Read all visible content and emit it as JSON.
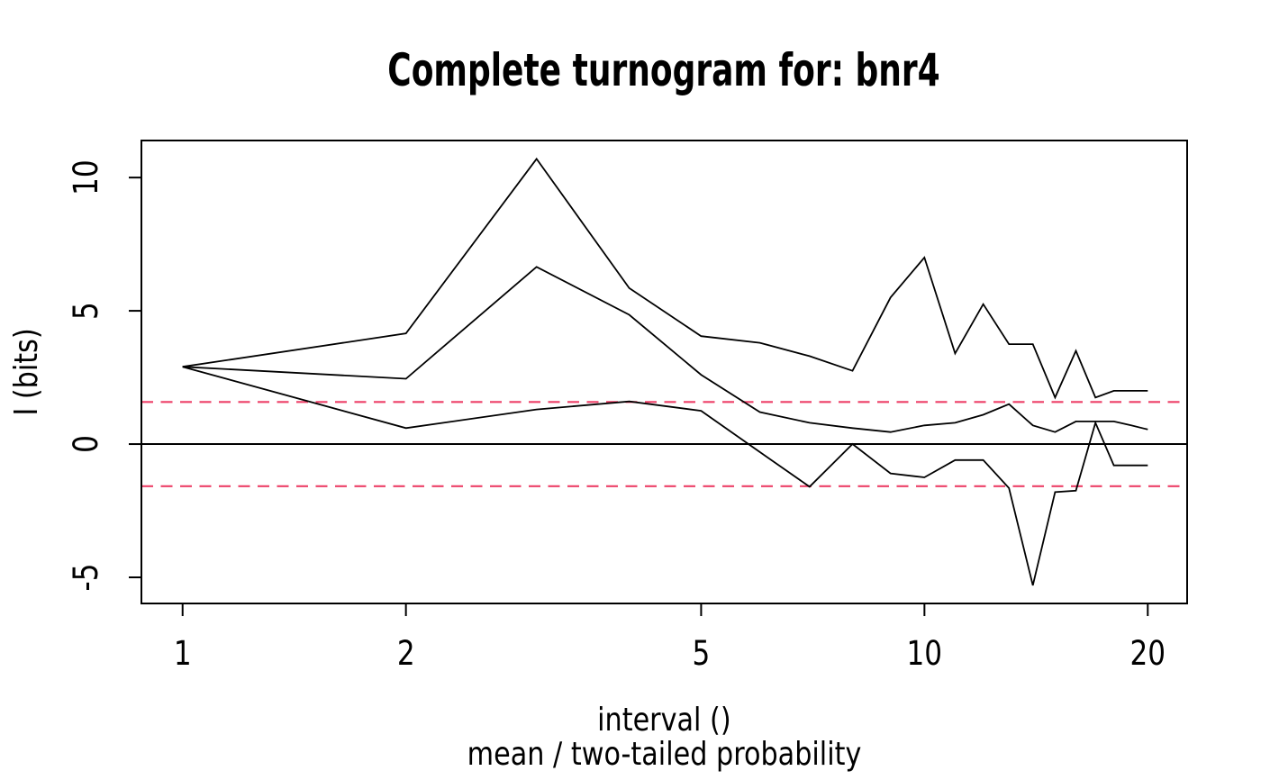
{
  "chart_data": {
    "type": "line",
    "title": "Complete turnogram for: bnr4",
    "xlabel": "interval ()",
    "sub_xlabel": "mean / two-tailed probability",
    "ylabel": "I (bits)",
    "x_scale": "log10",
    "grid": false,
    "legend": "none",
    "line_color": "#000000",
    "critical_color": "#ed4168",
    "x_ticks": [
      1,
      2,
      5,
      10,
      20
    ],
    "y_ticks": [
      -5,
      0,
      5,
      10
    ],
    "xlim": [
      0.88,
      22.6
    ],
    "ylim": [
      -5.98,
      11.39
    ],
    "x": [
      1,
      2,
      3,
      4,
      5,
      6,
      7,
      8,
      9,
      10,
      11,
      12,
      13,
      14,
      15,
      16,
      17,
      18,
      19,
      20
    ],
    "series": [
      {
        "name": "max",
        "color": "#000000",
        "values": [
          2.9,
          4.15,
          10.7,
          5.85,
          4.05,
          3.8,
          3.3,
          2.75,
          5.5,
          7.0,
          3.4,
          5.25,
          3.75,
          3.75,
          1.75,
          3.5,
          1.75,
          2.0,
          2.0,
          2.0
        ]
      },
      {
        "name": "mean",
        "color": "#000000",
        "values": [
          2.9,
          2.45,
          6.65,
          4.85,
          2.6,
          1.2,
          0.8,
          0.6,
          0.45,
          0.7,
          0.8,
          1.1,
          1.5,
          0.7,
          0.45,
          0.85,
          0.85,
          0.85,
          0.7,
          0.55
        ]
      },
      {
        "name": "min",
        "color": "#000000",
        "values": [
          2.9,
          0.6,
          1.3,
          1.6,
          1.25,
          -0.3,
          -1.6,
          0.0,
          -1.1,
          -1.25,
          -0.6,
          -0.6,
          -1.65,
          -5.3,
          -1.8,
          -1.75,
          0.8,
          -0.8,
          -0.8,
          -0.8
        ]
      }
    ],
    "reference_lines": [
      {
        "name": "zero-line",
        "y": 0,
        "style": "solid",
        "color": "#000000"
      },
      {
        "name": "upper-critical-line",
        "y": 1.58,
        "style": "dashed",
        "color": "#ed4168"
      },
      {
        "name": "lower-critical-line",
        "y": -1.58,
        "style": "dashed",
        "color": "#ed4168"
      }
    ]
  }
}
